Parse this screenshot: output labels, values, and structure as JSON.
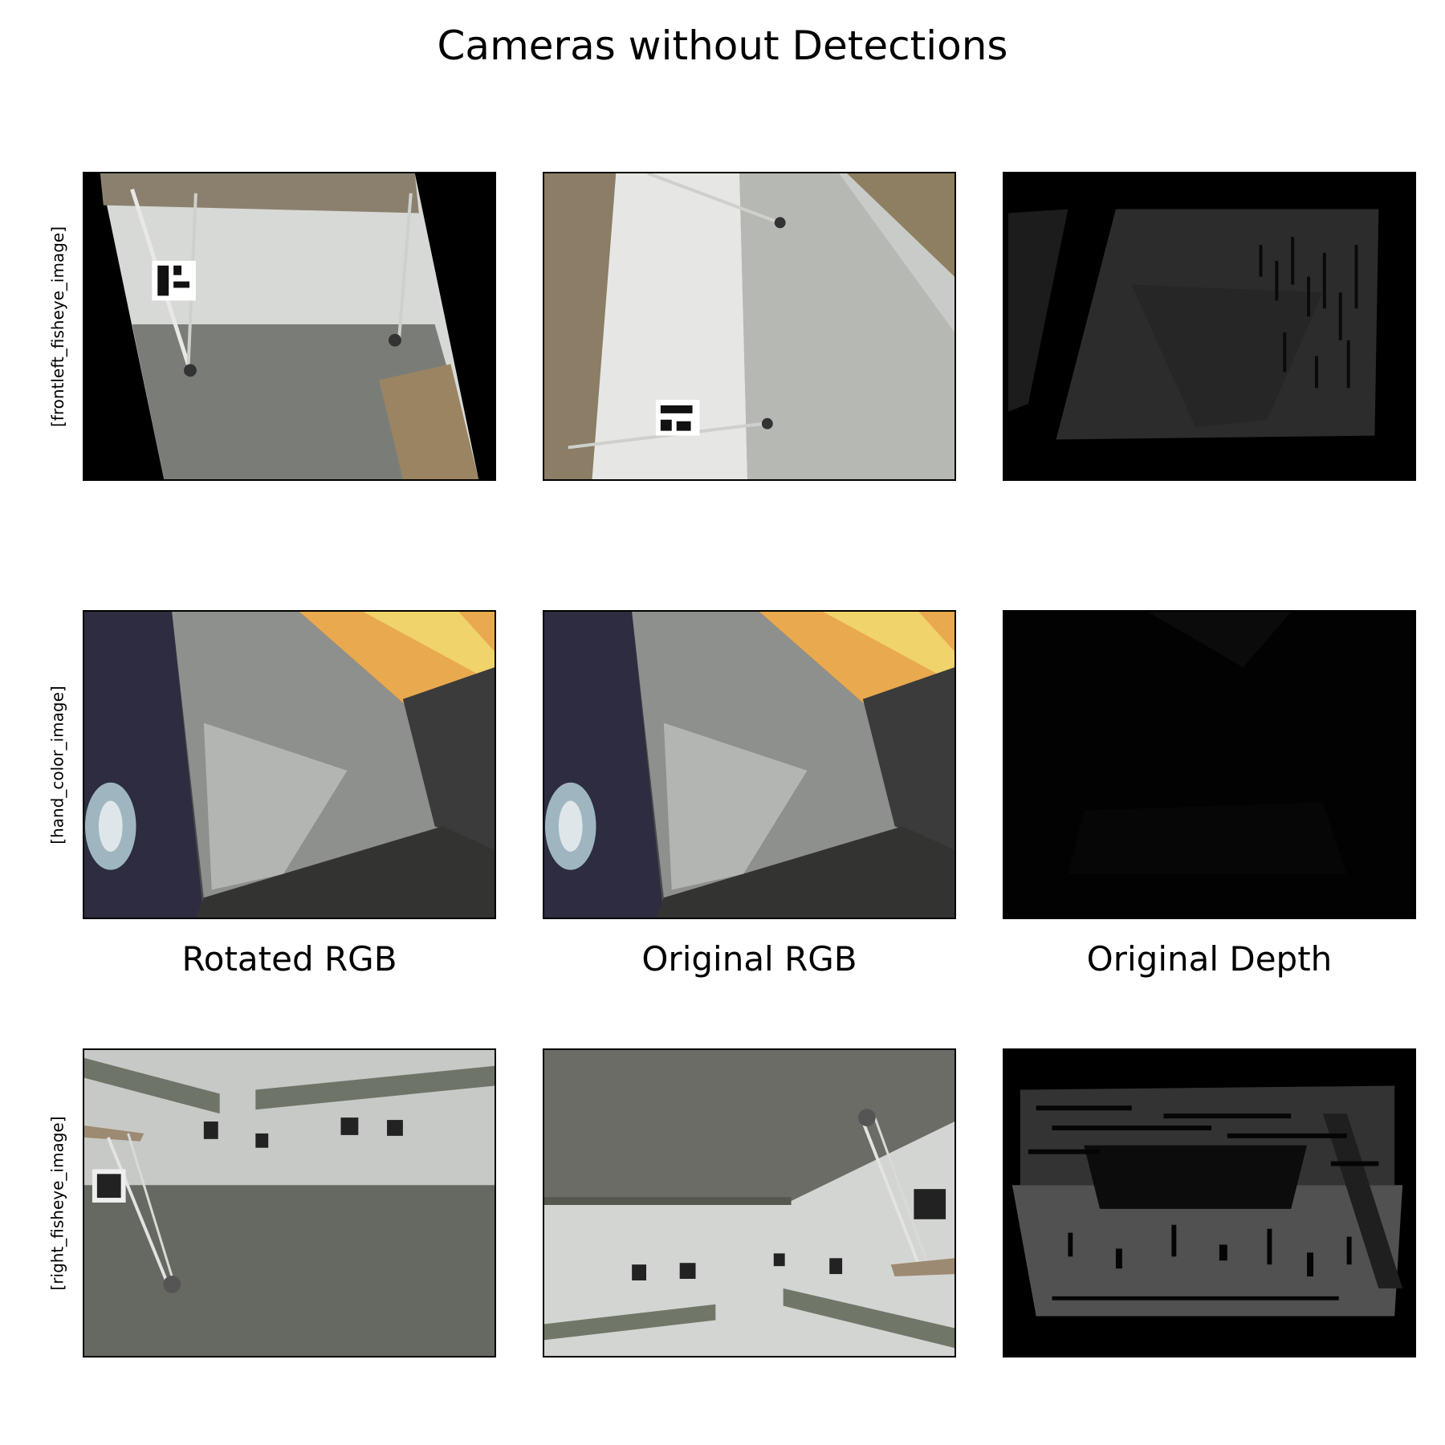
{
  "figure": {
    "title": "Cameras without Detections"
  },
  "rows": [
    {
      "label": "[frontleft_fisheye_image]"
    },
    {
      "label": "[hand_color_image]"
    },
    {
      "label": "[right_fisheye_image]"
    }
  ],
  "columns": [
    {
      "title": "Rotated RGB"
    },
    {
      "title": "Original RGB"
    },
    {
      "title": "Original Depth"
    }
  ]
}
